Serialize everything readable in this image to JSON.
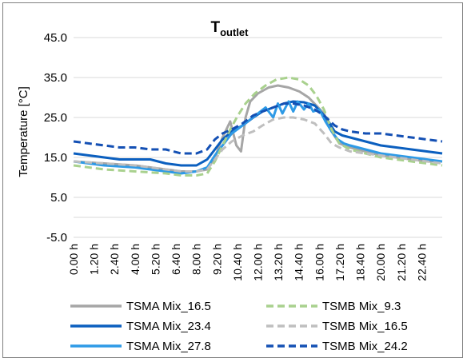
{
  "chart_data": {
    "type": "line",
    "title": "T",
    "title_subscript": "outlet",
    "ylabel": "Temperature [°C]",
    "xlabel": "",
    "ylim": [
      -5,
      45
    ],
    "yticks": [
      "45.0",
      "35.0",
      "25.0",
      "15.0",
      "5.0",
      "-5.0"
    ],
    "ytick_values": [
      45,
      35,
      25,
      15,
      5,
      -5
    ],
    "grid": "horizontal",
    "legend_position": "bottom",
    "x_ticks": [
      "0.00 h",
      "1.20 h",
      "2.40 h",
      "4.00 h",
      "5.20 h",
      "6.40 h",
      "8.00 h",
      "9.20 h",
      "10.40 h",
      "12.00 h",
      "13.20 h",
      "14.40 h",
      "16.00 h",
      "17.20 h",
      "18.40 h",
      "20.00 h",
      "21.20 h",
      "22.40 h"
    ],
    "x_tick_hours": [
      0,
      1.333,
      2.667,
      4,
      5.333,
      6.667,
      8,
      9.333,
      10.667,
      12,
      13.333,
      14.667,
      16,
      17.333,
      18.667,
      20,
      21.333,
      22.667
    ],
    "x_range_hours": [
      0,
      24
    ],
    "series": [
      {
        "name": "TSMA Mix_16.5",
        "color": "#a6a6a6",
        "dash": "solid",
        "x": [
          0,
          2,
          4,
          6,
          7,
          8,
          8.7,
          9.2,
          9.7,
          10.2,
          10.6,
          10.9,
          11.2,
          11.5,
          12,
          12.7,
          13.3,
          14,
          14.7,
          15.3,
          15.8,
          16.3,
          16.8,
          17.3,
          18,
          19,
          20,
          21,
          22,
          23,
          24
        ],
        "y": [
          14,
          13.5,
          13,
          12,
          11.5,
          11.5,
          12,
          15,
          20,
          24,
          18,
          16.5,
          25,
          29,
          31,
          32.5,
          33,
          32.5,
          31.5,
          30,
          28,
          26,
          21.5,
          18.5,
          17.5,
          16.5,
          15.5,
          15,
          14.5,
          14,
          14
        ]
      },
      {
        "name": "TSMA Mix_23.4",
        "color": "#0b5fbf",
        "dash": "solid",
        "x": [
          0,
          1,
          2,
          3,
          4,
          5,
          6,
          7,
          8,
          8.7,
          9.2,
          9.7,
          10.3,
          11,
          11.7,
          12.3,
          13,
          13.7,
          14.3,
          15,
          15.7,
          16.2,
          16.6,
          17,
          17.5,
          18,
          19,
          20,
          21,
          22,
          23,
          24
        ],
        "y": [
          16,
          15.5,
          15,
          14.5,
          14.5,
          14.5,
          13.5,
          13,
          13,
          14.5,
          17,
          19.5,
          21.5,
          23,
          25,
          26.5,
          27.5,
          28.5,
          29,
          28.8,
          28,
          26,
          24,
          21.5,
          20.5,
          20,
          19,
          18,
          17.5,
          17,
          16.5,
          16
        ]
      },
      {
        "name": "TSMA Mix_27.8",
        "color": "#2e9ae6",
        "dash": "solid",
        "x": [
          0,
          2,
          4,
          6,
          7,
          8,
          8.7,
          9.2,
          9.7,
          10.3,
          11,
          11.5,
          12,
          12.5,
          13,
          13.3,
          13.6,
          14,
          14.3,
          14.6,
          15,
          15.3,
          15.6,
          16,
          16.4,
          16.8,
          17.2,
          17.6,
          18,
          19,
          20,
          21,
          22,
          23,
          24
        ],
        "y": [
          14,
          13,
          12.5,
          11.5,
          11,
          11.5,
          12.5,
          15.5,
          18,
          21,
          23,
          24.5,
          26,
          27.5,
          25,
          28.5,
          26,
          29,
          26.5,
          29,
          27,
          28.5,
          26.5,
          27,
          24,
          21.5,
          19.5,
          18.5,
          18,
          17,
          16,
          15.5,
          15,
          14.5,
          14
        ]
      },
      {
        "name": "TSMB Mix_9.3",
        "color": "#a9d18e",
        "dash": "dash",
        "x": [
          0,
          2,
          4,
          6,
          7,
          8,
          8.7,
          9.2,
          9.7,
          10.2,
          10.7,
          11.2,
          11.8,
          12.5,
          13.2,
          14,
          14.7,
          15.3,
          15.8,
          16.3,
          16.8,
          17.3,
          18,
          19,
          20,
          21,
          22,
          23,
          24
        ],
        "y": [
          13,
          12,
          11.5,
          11,
          10.5,
          10.5,
          11,
          14,
          18,
          22,
          25.5,
          28.5,
          31,
          33,
          34.5,
          35,
          34.5,
          33,
          30.5,
          27,
          22,
          18.5,
          17,
          16,
          15,
          14.5,
          14,
          13.5,
          13
        ]
      },
      {
        "name": "TSMB Mix_16.5",
        "color": "#bfbfbf",
        "dash": "dash",
        "x": [
          0,
          2,
          4,
          6,
          7,
          8,
          8.7,
          9.2,
          9.7,
          10.3,
          11,
          11.7,
          12.3,
          13,
          13.7,
          14.3,
          15,
          15.7,
          16.3,
          16.8,
          17.3,
          18,
          19,
          20,
          21,
          22,
          23,
          24
        ],
        "y": [
          14,
          13.5,
          13,
          12,
          11.5,
          11.5,
          12,
          14.5,
          17,
          19,
          20.5,
          21.5,
          23,
          24.5,
          25,
          25,
          24.5,
          23.5,
          21,
          18.5,
          17.5,
          16.5,
          16,
          15.5,
          15,
          14.5,
          14,
          13.5
        ]
      },
      {
        "name": "TSMB Mix_24.2",
        "color": "#1450b4",
        "dash": "dash",
        "x": [
          0,
          1,
          2,
          3,
          4,
          5,
          6,
          7,
          8,
          8.7,
          9.2,
          9.7,
          10.3,
          11,
          11.7,
          12.3,
          13,
          13.7,
          14.3,
          15,
          15.7,
          16.3,
          17,
          17.5,
          18,
          19,
          20,
          21,
          22,
          23,
          24
        ],
        "y": [
          19,
          18.5,
          18,
          17.5,
          17.5,
          17,
          17,
          16,
          16,
          17,
          19.5,
          21,
          22,
          23.5,
          25.5,
          26.5,
          27.5,
          28.5,
          28.5,
          28,
          27,
          25.5,
          23,
          22,
          21.5,
          21,
          21,
          20.5,
          20,
          19.5,
          19
        ]
      }
    ]
  }
}
